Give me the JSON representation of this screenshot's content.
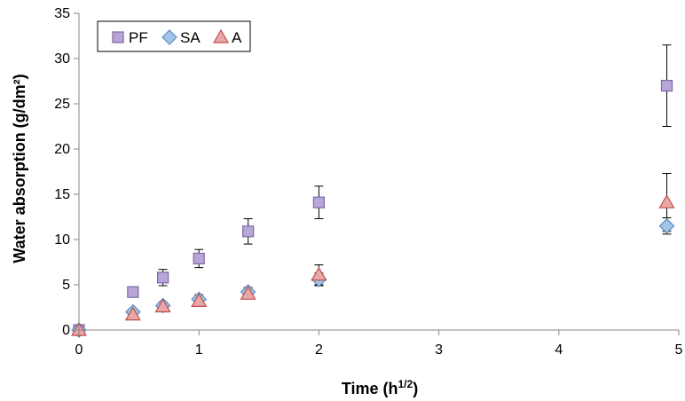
{
  "chart_data": {
    "type": "scatter",
    "title": "",
    "xlabel_main": "Time (h",
    "xlabel_sup": "1/2",
    "xlabel_end": ")",
    "ylabel": "Water absorption (g/dm²)",
    "xlim": [
      0,
      5
    ],
    "ylim": [
      0,
      35
    ],
    "xticks": [
      "0",
      "1",
      "2",
      "3",
      "4",
      "5"
    ],
    "yticks": [
      "0",
      "5",
      "10",
      "15",
      "20",
      "25",
      "30",
      "35"
    ],
    "grid": false,
    "legend_position": "top-left",
    "series": [
      {
        "name": "PF",
        "marker": "square",
        "fill": "#b7a6d6",
        "stroke": "#7d68a8",
        "points": [
          {
            "x": 0,
            "y": 0,
            "err": 0
          },
          {
            "x": 0.45,
            "y": 4.2,
            "err": 0.4
          },
          {
            "x": 0.7,
            "y": 5.8,
            "err": 0.9
          },
          {
            "x": 1.0,
            "y": 7.9,
            "err": 1.0
          },
          {
            "x": 1.41,
            "y": 10.9,
            "err": 1.4
          },
          {
            "x": 2.0,
            "y": 14.1,
            "err": 1.8
          },
          {
            "x": 4.9,
            "y": 27.0,
            "err": 4.5
          }
        ]
      },
      {
        "name": "SA",
        "marker": "diamond",
        "fill": "#a3c4e6",
        "stroke": "#5b8cc2",
        "points": [
          {
            "x": 0,
            "y": 0,
            "err": 0
          },
          {
            "x": 0.45,
            "y": 2.0,
            "err": 0.3
          },
          {
            "x": 0.7,
            "y": 2.7,
            "err": 0.4
          },
          {
            "x": 1.0,
            "y": 3.4,
            "err": 0.5
          },
          {
            "x": 1.41,
            "y": 4.2,
            "err": 0.5
          },
          {
            "x": 2.0,
            "y": 5.6,
            "err": 0.7
          },
          {
            "x": 4.9,
            "y": 11.5,
            "err": 0.9
          }
        ]
      },
      {
        "name": "A",
        "marker": "triangle",
        "fill": "#e8a8a8",
        "stroke": "#c0504d",
        "points": [
          {
            "x": 0,
            "y": 0,
            "err": 0
          },
          {
            "x": 0.45,
            "y": 1.7,
            "err": 0.3
          },
          {
            "x": 0.7,
            "y": 2.6,
            "err": 0.4
          },
          {
            "x": 1.0,
            "y": 3.2,
            "err": 0.5
          },
          {
            "x": 1.41,
            "y": 4.0,
            "err": 0.5
          },
          {
            "x": 2.0,
            "y": 6.1,
            "err": 1.1
          },
          {
            "x": 4.9,
            "y": 14.1,
            "err": 3.2
          }
        ]
      }
    ]
  }
}
